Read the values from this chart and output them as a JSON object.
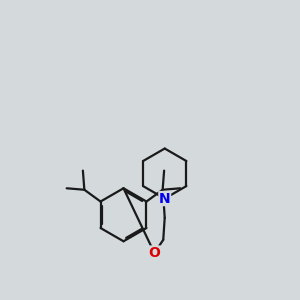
{
  "bg_color": "#d4d9dc",
  "bond_color": "#1a1a1a",
  "N_color": "#0000ee",
  "O_color": "#dd0000",
  "line_width": 1.6,
  "figsize": [
    3.0,
    3.0
  ],
  "dpi": 100
}
